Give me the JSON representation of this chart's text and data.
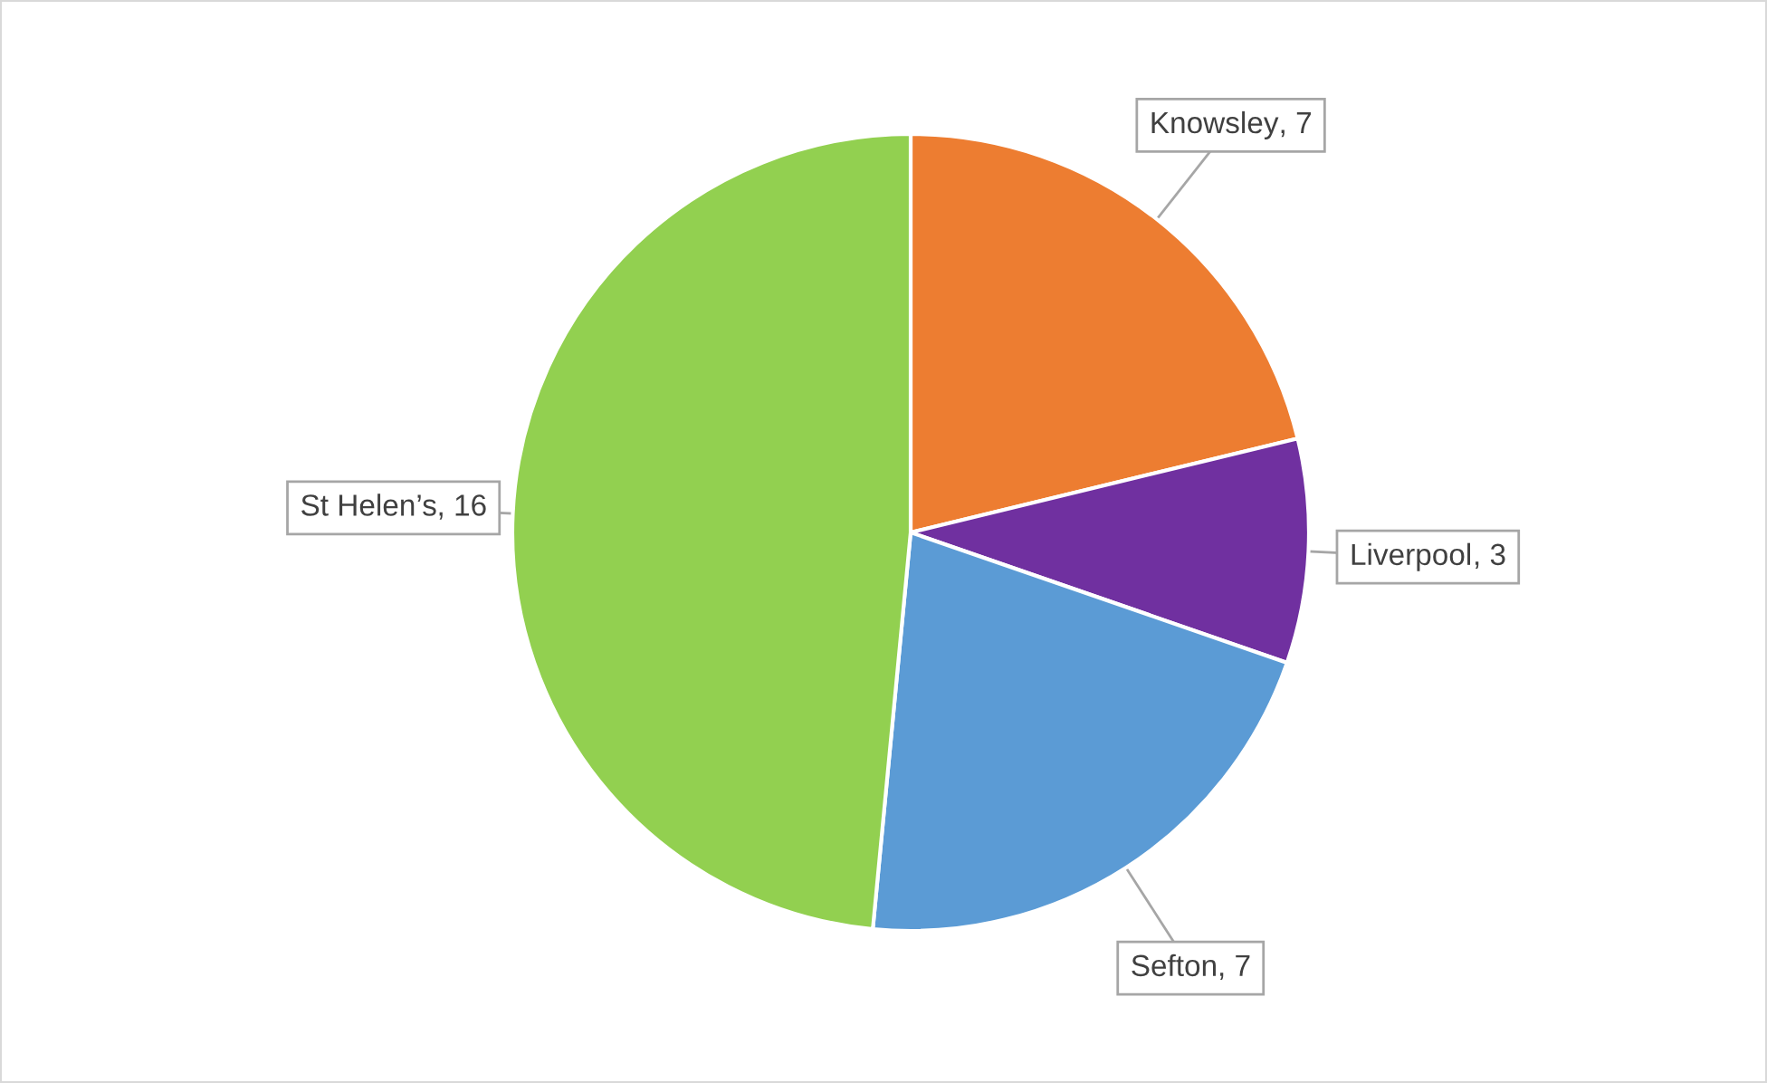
{
  "chart_data": {
    "type": "pie",
    "categories": [
      "Knowsley",
      "Liverpool",
      "Sefton",
      "St Helen’s"
    ],
    "values": [
      7,
      3,
      7,
      16
    ],
    "colors": [
      "#ed7d31",
      "#7030a0",
      "#5b9bd5",
      "#92d050"
    ],
    "value_labels": [
      ", 7",
      ", 3",
      ", 7",
      ", 16"
    ],
    "legend": false
  }
}
